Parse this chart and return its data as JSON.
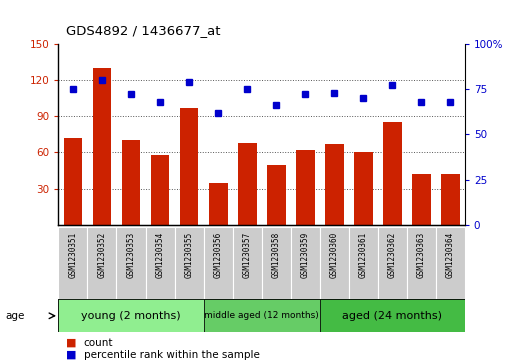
{
  "title": "GDS4892 / 1436677_at",
  "samples": [
    "GSM1230351",
    "GSM1230352",
    "GSM1230353",
    "GSM1230354",
    "GSM1230355",
    "GSM1230356",
    "GSM1230357",
    "GSM1230358",
    "GSM1230359",
    "GSM1230360",
    "GSM1230361",
    "GSM1230362",
    "GSM1230363",
    "GSM1230364"
  ],
  "counts": [
    72,
    130,
    70,
    58,
    97,
    35,
    68,
    50,
    62,
    67,
    60,
    85,
    42,
    42
  ],
  "percentiles": [
    75,
    80,
    72,
    68,
    79,
    62,
    75,
    66,
    72,
    73,
    70,
    77,
    68,
    68
  ],
  "ylim_left": [
    0,
    150
  ],
  "ylim_right": [
    0,
    100
  ],
  "yticks_left": [
    30,
    60,
    90,
    120,
    150
  ],
  "yticks_right": [
    0,
    25,
    50,
    75,
    100
  ],
  "groups": [
    {
      "label": "young (2 months)",
      "start": 0,
      "end": 5,
      "color": "#90EE90"
    },
    {
      "label": "middle aged (12 months)",
      "start": 5,
      "end": 9,
      "color": "#66CC66"
    },
    {
      "label": "aged (24 months)",
      "start": 9,
      "end": 14,
      "color": "#44BB44"
    }
  ],
  "bar_color": "#CC2200",
  "dot_color": "#0000CC",
  "grid_color": "#555555",
  "age_label": "age",
  "legend_count": "count",
  "legend_percentile": "percentile rank within the sample",
  "label_box_color": "#CCCCCC",
  "bg_color": "#FFFFFF"
}
